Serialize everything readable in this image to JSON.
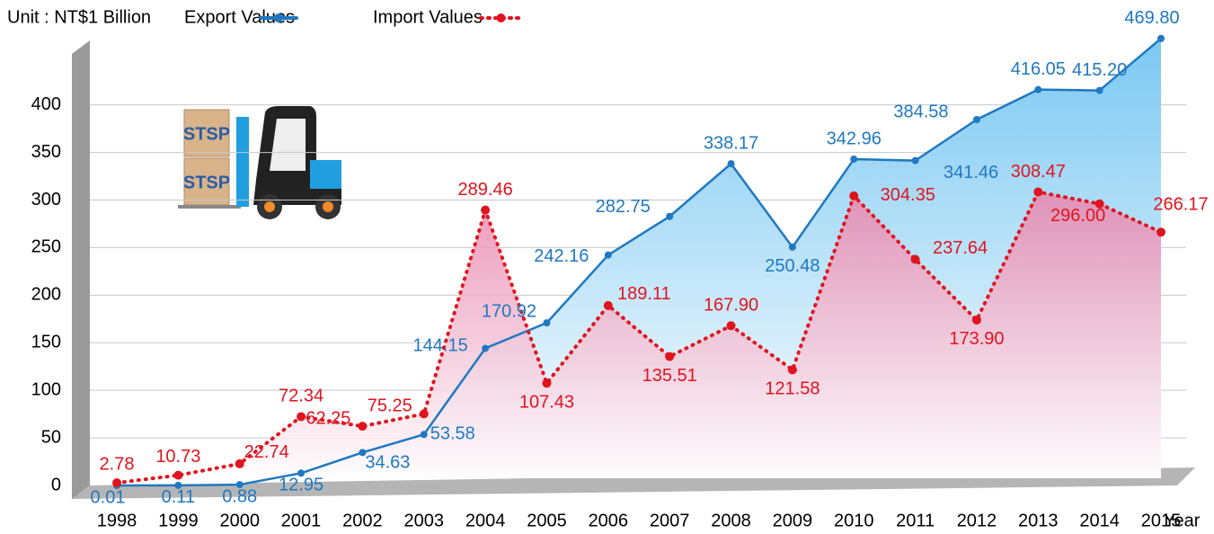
{
  "chart_data": {
    "type": "line",
    "unit_label": "Unit : NT$1 Billion",
    "x_label": "Year",
    "annotations": [
      "STSP",
      "STSP"
    ],
    "categories": [
      "1998",
      "1999",
      "2000",
      "2001",
      "2002",
      "2003",
      "2004",
      "2005",
      "2006",
      "2007",
      "2008",
      "2009",
      "2010",
      "2011",
      "2012",
      "2013",
      "2014",
      "2015"
    ],
    "series": [
      {
        "name": "Export Values",
        "color": "#1f78c1",
        "values": [
          0.01,
          0.11,
          0.88,
          12.95,
          34.63,
          53.58,
          144.15,
          170.92,
          242.16,
          282.75,
          338.17,
          250.48,
          342.96,
          341.46,
          384.58,
          416.05,
          415.2,
          469.8
        ],
        "value_labels": [
          "0.01",
          "0.11",
          "0.88",
          "12.95",
          "34.63",
          "53.58",
          "144.15",
          "170.92",
          "242.16",
          "282.75",
          "338.17",
          "250.48",
          "342.96",
          "341.46",
          "384.58",
          "416.05",
          "415.20",
          "469.80"
        ]
      },
      {
        "name": "Import Values",
        "color": "#e0141e",
        "values": [
          2.78,
          10.73,
          22.74,
          72.34,
          62.25,
          75.25,
          289.46,
          107.43,
          189.11,
          135.51,
          167.9,
          121.58,
          304.35,
          237.64,
          173.9,
          308.47,
          296,
          266.17
        ],
        "value_labels": [
          "2.78",
          "10.73",
          "22.74",
          "72.34",
          "62.25",
          "75.25",
          "289.46",
          "107.43",
          "189.11",
          "135.51",
          "167.90",
          "121.58",
          "304.35",
          "237.64",
          "173.90",
          "308.47",
          "296.00",
          "266.17"
        ]
      }
    ],
    "ylim": [
      0,
      480
    ],
    "yticks": [
      0,
      50,
      100,
      150,
      200,
      250,
      300,
      350,
      400
    ],
    "grid": true,
    "legend": "top"
  }
}
